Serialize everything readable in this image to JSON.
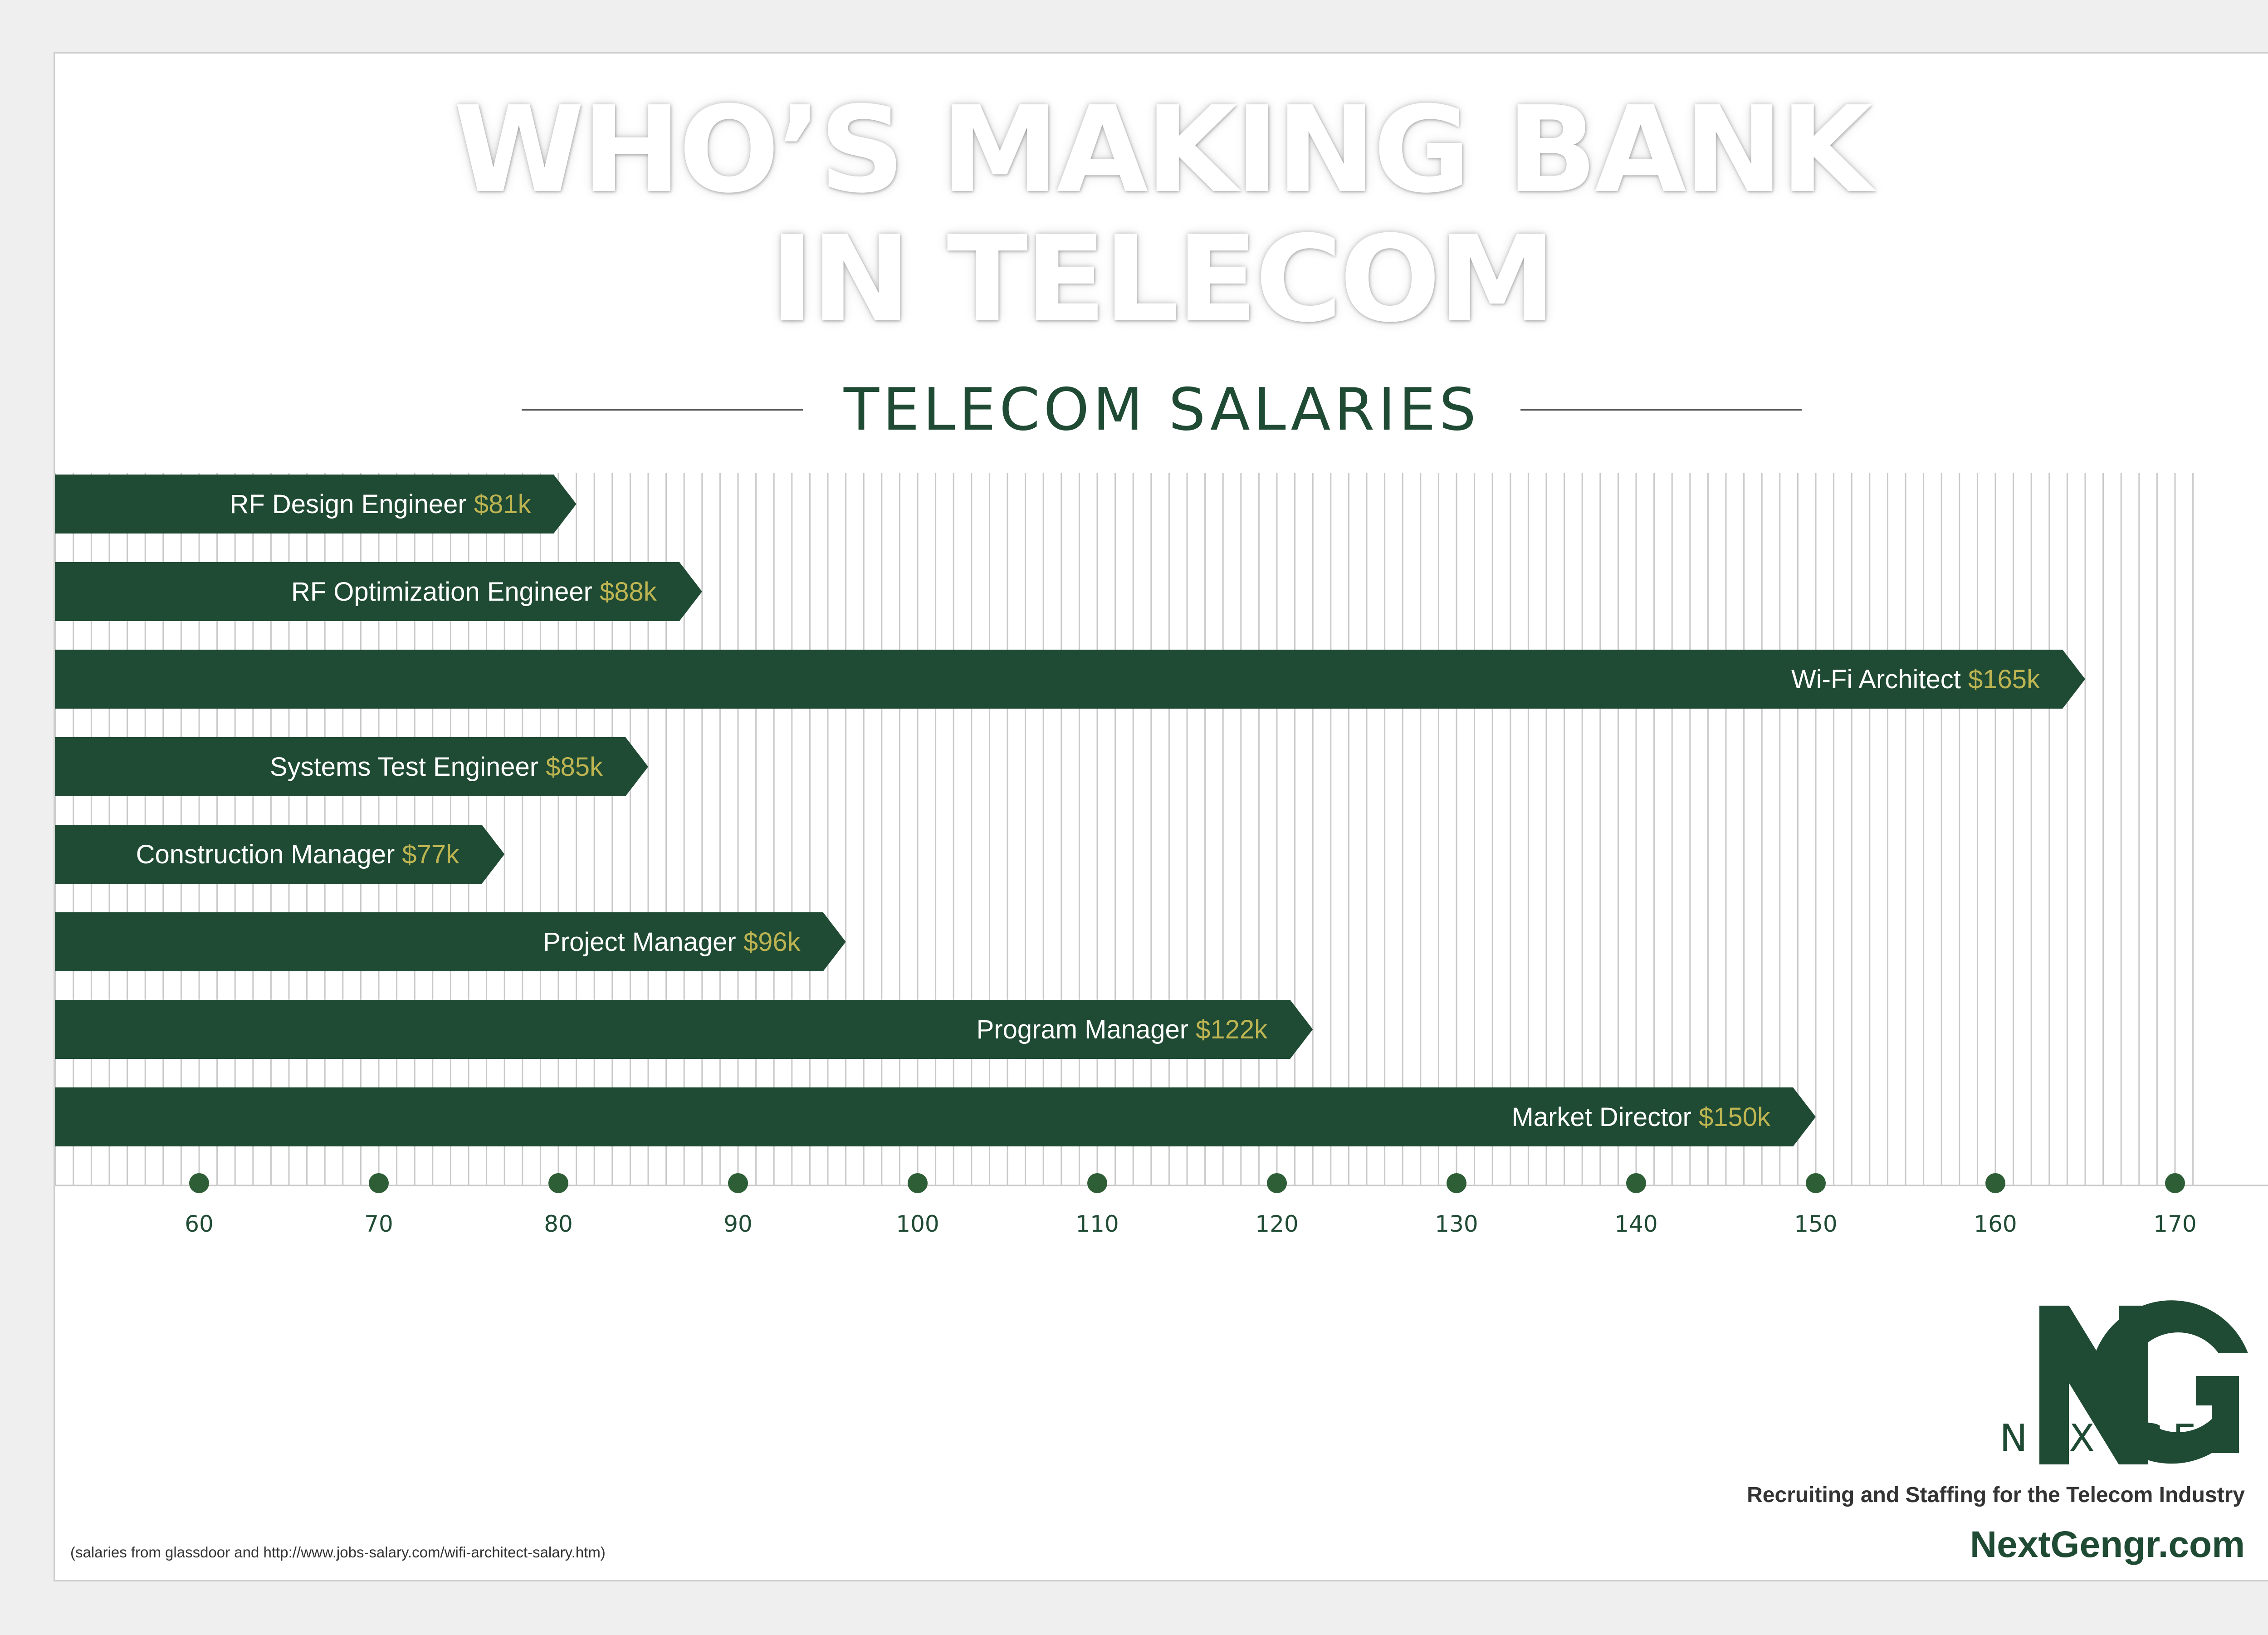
{
  "headline": [
    "WHO’S MAKING BANK",
    "IN TELECOM"
  ],
  "subtitle": "TELECOM SALARIES",
  "colors": {
    "bar": "#1f4a33",
    "value_text": "#bdb452",
    "label_text": "#ffffff",
    "axis_dot": "#2d5e36",
    "grid": "#c9c9c9"
  },
  "chart_data": {
    "type": "bar",
    "orientation": "horizontal",
    "title": "TELECOM SALARIES",
    "categories": [
      "RF Design Engineer",
      "RF Optimization Engineer",
      "Wi-Fi Architect",
      "Systems Test Engineer",
      "Construction Manager",
      "Project Manager",
      "Program Manager",
      "Market Director"
    ],
    "values": [
      81,
      88,
      165,
      85,
      77,
      96,
      122,
      150
    ],
    "value_labels": [
      "$81k",
      "$88k",
      "$165k",
      "$85k",
      "$77k",
      "$96k",
      "$122k",
      "$150k"
    ],
    "xticks": [
      60,
      70,
      80,
      90,
      100,
      110,
      120,
      130,
      140,
      150,
      160,
      170
    ],
    "xlim": [
      52,
      172
    ],
    "grid": true
  },
  "logo": {
    "monogram": "NG",
    "name": "NEXTGEN"
  },
  "tagline": "Recruiting and Staffing for the Telecom Industry",
  "website": "NextGengr.com",
  "source_note": "(salaries from glassdoor and http://www.jobs-salary.com/wifi-architect-salary.htm)"
}
